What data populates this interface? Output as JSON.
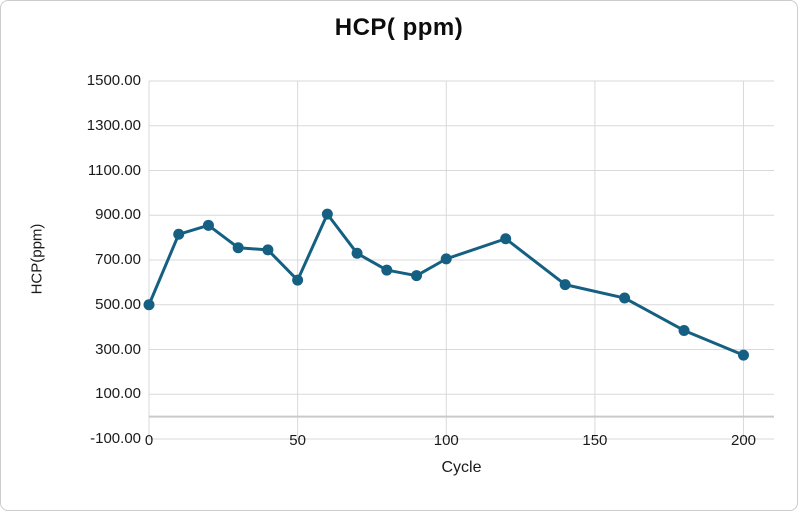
{
  "chart_data": {
    "type": "line",
    "title": "HCP( ppm)",
    "xlabel": "Cycle",
    "ylabel": "HCP(ppm)",
    "x": [
      0,
      10,
      20,
      30,
      40,
      50,
      60,
      70,
      80,
      90,
      100,
      120,
      140,
      160,
      180,
      200
    ],
    "y": [
      500,
      815,
      855,
      755,
      745,
      610,
      905,
      730,
      655,
      630,
      705,
      795,
      590,
      530,
      385,
      275
    ],
    "series_name": "HCP( ppm)",
    "xlim": [
      0,
      200
    ],
    "ylim": [
      -100,
      1500
    ],
    "x_ticks": [
      0,
      50,
      100,
      150,
      200
    ],
    "y_tick_labels": [
      "1500.00",
      "1300.00",
      "1100.00",
      "900.00",
      "700.00",
      "500.00",
      "300.00",
      "100.00",
      "-100.00"
    ],
    "y_tick_values": [
      1500,
      1300,
      1100,
      900,
      700,
      500,
      300,
      100,
      -100
    ],
    "grid": true,
    "legend": "none",
    "axis_crosses_at_y": 0,
    "line_color": "#156082",
    "marker_color": "#156082",
    "gridline_color": "#D9D9D9",
    "axis_line_color": "#C9C9C9",
    "text_color": "#1a1a1a",
    "title_color": "#0d0d0d"
  }
}
